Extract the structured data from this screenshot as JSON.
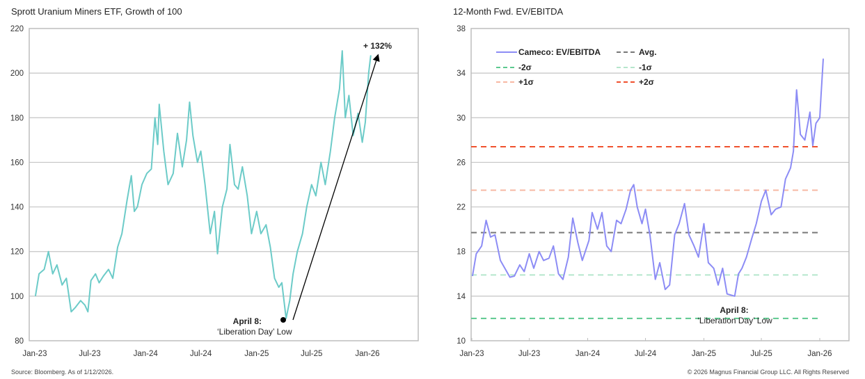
{
  "chart_data": [
    {
      "type": "line",
      "title": "Sprott Uranium Miners ETF, Growth of 100",
      "ylim": [
        80,
        220
      ],
      "yticks": [
        80,
        100,
        120,
        140,
        160,
        180,
        200,
        220
      ],
      "xticks": [
        "Jan-23",
        "Jul-23",
        "Jan-24",
        "Jul-24",
        "Jan-25",
        "Jul-25",
        "Jan-26"
      ],
      "xtick_dates": [
        "2023-01-01",
        "2023-07-01",
        "2024-01-01",
        "2024-07-01",
        "2025-01-01",
        "2025-07-01",
        "2026-01-01"
      ],
      "grid": true,
      "color": "#6ccbc8",
      "series": [
        {
          "points": [
            [
              "2023-01-03",
              100
            ],
            [
              "2023-01-15",
              110
            ],
            [
              "2023-02-01",
              112
            ],
            [
              "2023-02-15",
              120
            ],
            [
              "2023-03-01",
              110
            ],
            [
              "2023-03-15",
              114
            ],
            [
              "2023-04-01",
              105
            ],
            [
              "2023-04-15",
              108
            ],
            [
              "2023-05-01",
              93
            ],
            [
              "2023-05-15",
              95
            ],
            [
              "2023-06-01",
              98
            ],
            [
              "2023-06-15",
              96
            ],
            [
              "2023-06-25",
              93
            ],
            [
              "2023-07-05",
              107
            ],
            [
              "2023-07-20",
              110
            ],
            [
              "2023-08-01",
              106
            ],
            [
              "2023-08-15",
              109
            ],
            [
              "2023-09-01",
              112
            ],
            [
              "2023-09-15",
              108
            ],
            [
              "2023-10-01",
              122
            ],
            [
              "2023-10-15",
              128
            ],
            [
              "2023-11-01",
              143
            ],
            [
              "2023-11-15",
              154
            ],
            [
              "2023-11-25",
              138
            ],
            [
              "2023-12-05",
              140
            ],
            [
              "2023-12-20",
              150
            ],
            [
              "2024-01-05",
              155
            ],
            [
              "2024-01-20",
              157
            ],
            [
              "2024-02-01",
              180
            ],
            [
              "2024-02-10",
              168
            ],
            [
              "2024-02-15",
              186
            ],
            [
              "2024-03-01",
              165
            ],
            [
              "2024-03-15",
              150
            ],
            [
              "2024-04-01",
              155
            ],
            [
              "2024-04-15",
              173
            ],
            [
              "2024-05-01",
              158
            ],
            [
              "2024-05-15",
              170
            ],
            [
              "2024-05-25",
              187
            ],
            [
              "2024-06-05",
              172
            ],
            [
              "2024-06-20",
              160
            ],
            [
              "2024-07-01",
              165
            ],
            [
              "2024-07-15",
              150
            ],
            [
              "2024-08-01",
              128
            ],
            [
              "2024-08-15",
              138
            ],
            [
              "2024-08-25",
              119
            ],
            [
              "2024-09-10",
              140
            ],
            [
              "2024-09-25",
              148
            ],
            [
              "2024-10-05",
              168
            ],
            [
              "2024-10-20",
              150
            ],
            [
              "2024-11-01",
              148
            ],
            [
              "2024-11-15",
              158
            ],
            [
              "2024-12-01",
              145
            ],
            [
              "2024-12-15",
              128
            ],
            [
              "2025-01-01",
              138
            ],
            [
              "2025-01-15",
              128
            ],
            [
              "2025-02-01",
              132
            ],
            [
              "2025-02-15",
              122
            ],
            [
              "2025-03-01",
              108
            ],
            [
              "2025-03-15",
              104
            ],
            [
              "2025-03-25",
              106
            ],
            [
              "2025-04-08",
              90
            ],
            [
              "2025-04-20",
              98
            ],
            [
              "2025-05-01",
              110
            ],
            [
              "2025-05-15",
              120
            ],
            [
              "2025-06-01",
              128
            ],
            [
              "2025-06-15",
              140
            ],
            [
              "2025-07-01",
              150
            ],
            [
              "2025-07-15",
              145
            ],
            [
              "2025-08-01",
              160
            ],
            [
              "2025-08-15",
              150
            ],
            [
              "2025-09-01",
              165
            ],
            [
              "2025-09-15",
              180
            ],
            [
              "2025-10-01",
              193
            ],
            [
              "2025-10-10",
              210
            ],
            [
              "2025-10-20",
              180
            ],
            [
              "2025-11-01",
              190
            ],
            [
              "2025-11-15",
              172
            ],
            [
              "2025-12-01",
              182
            ],
            [
              "2025-12-15",
              169
            ],
            [
              "2025-12-25",
              178
            ],
            [
              "2026-01-05",
              200
            ],
            [
              "2026-01-12",
              208
            ]
          ]
        }
      ],
      "annotations": {
        "gain": "+ 132%",
        "low_title": "April 8:",
        "low_text": "‘Liberation Day’ Low"
      }
    },
    {
      "type": "line",
      "title": "12-Month Fwd. EV/EBITDA",
      "ylim": [
        10,
        38
      ],
      "yticks": [
        10,
        14,
        18,
        22,
        26,
        30,
        34,
        38
      ],
      "xticks": [
        "Jan-23",
        "Jul-23",
        "Jan-24",
        "Jul-24",
        "Jan-25",
        "Jul-25",
        "Jan-26"
      ],
      "xtick_dates": [
        "2023-01-01",
        "2023-07-01",
        "2024-01-01",
        "2024-07-01",
        "2025-01-01",
        "2025-07-01",
        "2026-01-01"
      ],
      "grid": true,
      "legend_placement": "top-left",
      "series": [
        {
          "name": "Cameco: EV/EBITDA",
          "color": "#8c8cf5",
          "points": [
            [
              "2023-01-03",
              15.8
            ],
            [
              "2023-01-15",
              17.8
            ],
            [
              "2023-02-01",
              18.5
            ],
            [
              "2023-02-15",
              20.8
            ],
            [
              "2023-03-01",
              19.3
            ],
            [
              "2023-03-15",
              19.5
            ],
            [
              "2023-04-01",
              17.2
            ],
            [
              "2023-04-15",
              16.5
            ],
            [
              "2023-05-01",
              15.7
            ],
            [
              "2023-05-15",
              15.8
            ],
            [
              "2023-06-01",
              16.8
            ],
            [
              "2023-06-15",
              16.2
            ],
            [
              "2023-07-01",
              17.8
            ],
            [
              "2023-07-15",
              16.5
            ],
            [
              "2023-08-01",
              18.0
            ],
            [
              "2023-08-15",
              17.2
            ],
            [
              "2023-09-01",
              17.4
            ],
            [
              "2023-09-15",
              18.5
            ],
            [
              "2023-10-01",
              16.0
            ],
            [
              "2023-10-15",
              15.5
            ],
            [
              "2023-11-01",
              17.5
            ],
            [
              "2023-11-15",
              21.0
            ],
            [
              "2023-12-01",
              18.8
            ],
            [
              "2023-12-15",
              17.2
            ],
            [
              "2024-01-05",
              19.0
            ],
            [
              "2024-01-15",
              21.5
            ],
            [
              "2024-02-01",
              20.0
            ],
            [
              "2024-02-15",
              21.5
            ],
            [
              "2024-03-01",
              18.5
            ],
            [
              "2024-03-15",
              18.0
            ],
            [
              "2024-04-01",
              20.8
            ],
            [
              "2024-04-15",
              20.5
            ],
            [
              "2024-05-01",
              21.8
            ],
            [
              "2024-05-15",
              23.5
            ],
            [
              "2024-05-25",
              24.0
            ],
            [
              "2024-06-05",
              22.0
            ],
            [
              "2024-06-20",
              20.5
            ],
            [
              "2024-07-01",
              21.8
            ],
            [
              "2024-07-15",
              19.5
            ],
            [
              "2024-08-01",
              15.5
            ],
            [
              "2024-08-15",
              17.0
            ],
            [
              "2024-09-01",
              14.6
            ],
            [
              "2024-09-15",
              15.0
            ],
            [
              "2024-10-01",
              19.5
            ],
            [
              "2024-10-15",
              20.5
            ],
            [
              "2024-11-01",
              22.3
            ],
            [
              "2024-11-15",
              19.5
            ],
            [
              "2024-12-01",
              18.5
            ],
            [
              "2024-12-15",
              17.5
            ],
            [
              "2025-01-01",
              20.5
            ],
            [
              "2025-01-15",
              17.0
            ],
            [
              "2025-02-01",
              16.5
            ],
            [
              "2025-02-15",
              15.0
            ],
            [
              "2025-03-01",
              16.5
            ],
            [
              "2025-03-15",
              14.2
            ],
            [
              "2025-04-08",
              14.0
            ],
            [
              "2025-04-20",
              16.0
            ],
            [
              "2025-05-01",
              16.5
            ],
            [
              "2025-05-15",
              17.5
            ],
            [
              "2025-06-01",
              19.2
            ],
            [
              "2025-06-15",
              20.5
            ],
            [
              "2025-07-01",
              22.5
            ],
            [
              "2025-07-15",
              23.5
            ],
            [
              "2025-08-01",
              21.3
            ],
            [
              "2025-08-15",
              21.8
            ],
            [
              "2025-09-01",
              22.0
            ],
            [
              "2025-09-15",
              24.5
            ],
            [
              "2025-10-01",
              25.5
            ],
            [
              "2025-10-10",
              27.0
            ],
            [
              "2025-10-20",
              32.5
            ],
            [
              "2025-11-01",
              28.5
            ],
            [
              "2025-11-15",
              28.0
            ],
            [
              "2025-12-01",
              30.5
            ],
            [
              "2025-12-10",
              27.5
            ],
            [
              "2025-12-20",
              29.5
            ],
            [
              "2026-01-01",
              30.0
            ],
            [
              "2026-01-05",
              32.0
            ],
            [
              "2026-01-12",
              35.3
            ]
          ]
        },
        {
          "name": "Avg.",
          "color": "#777777",
          "value": 19.7,
          "dashed": true
        },
        {
          "name": "-2σ",
          "color": "#5cc98f",
          "value": 12.0,
          "dashed": true
        },
        {
          "name": "-1σ",
          "color": "#b5e6cc",
          "value": 15.9,
          "dashed": true
        },
        {
          "name": "+1σ",
          "color": "#f7b8a3",
          "value": 23.5,
          "dashed": true
        },
        {
          "name": "+2σ",
          "color": "#f0502d",
          "value": 27.4,
          "dashed": true
        }
      ],
      "annotations": {
        "low_title": "April 8:",
        "low_text": "‘Liberation Day’ Low"
      }
    }
  ],
  "footer": {
    "source": "Source: Bloomberg. As of 1/12/2026.",
    "copyright": "© 2026 Magnus Financial Group LLC. All Rights Reserved"
  }
}
